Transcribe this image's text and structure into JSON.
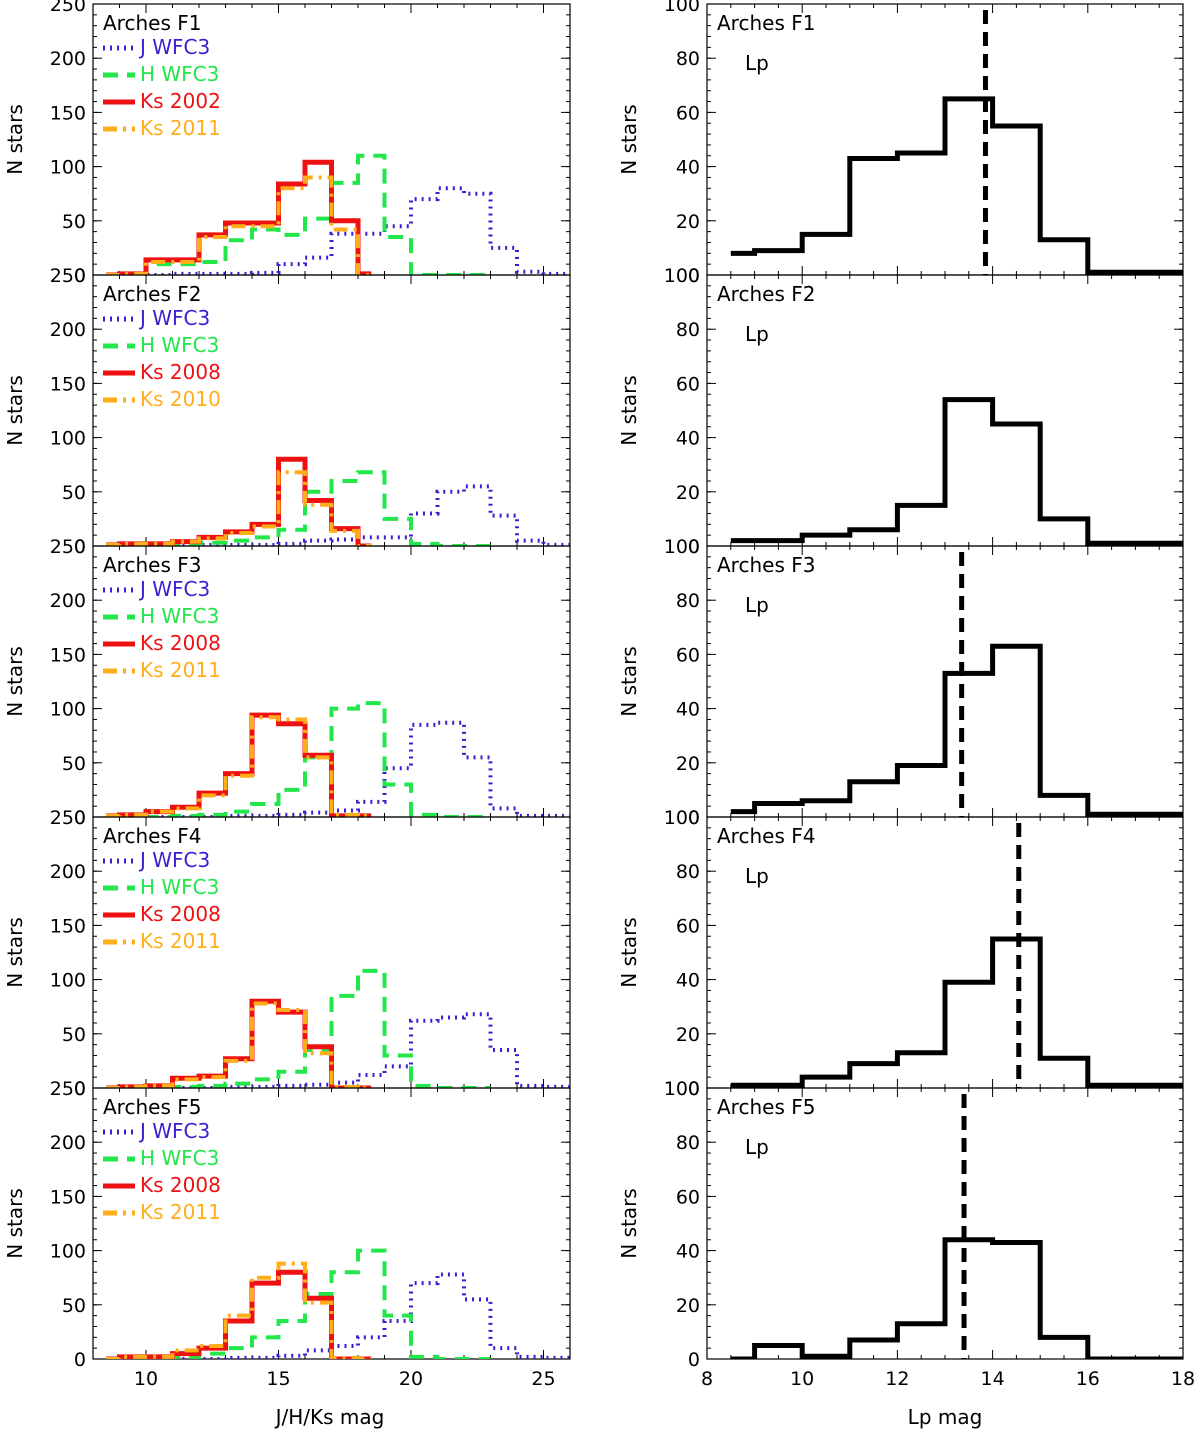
{
  "figure": {
    "left_xlabel": "J/H/Ks mag",
    "right_xlabel": "Lp mag",
    "ylabel": "N stars",
    "right_inset_label": "Lp"
  },
  "colors": {
    "J": "#3a1fd0",
    "H": "#22e64a",
    "Ks1": "#ee1111",
    "Ks2": "#ffae1a",
    "Lp": "#000000",
    "marker": "#000000"
  },
  "chart_data": [
    {
      "type": "histogram",
      "panel": "left",
      "field": "Arches F1",
      "title": "Arches F1",
      "xlim": [
        8,
        26
      ],
      "ylim": [
        0,
        250
      ],
      "xticks": [
        10,
        15,
        20,
        25
      ],
      "yticks": [
        0,
        50,
        100,
        150,
        200,
        250
      ],
      "xlabel": "",
      "ylabel": "N stars",
      "series": [
        {
          "key": "J",
          "name": "J WFC3",
          "style": "dotted",
          "edges": [
            9,
            10,
            11,
            12,
            13,
            14,
            15,
            16,
            17,
            18,
            19,
            20,
            21,
            22,
            23,
            24,
            25,
            26
          ],
          "values": [
            0,
            0,
            1,
            1,
            1,
            2,
            10,
            16,
            38,
            38,
            45,
            70,
            80,
            75,
            25,
            3,
            1
          ]
        },
        {
          "key": "H",
          "name": "H WFC3",
          "style": "dashed",
          "edges": [
            9,
            10,
            11,
            12,
            13,
            14,
            15,
            16,
            17,
            18,
            19,
            20,
            21,
            22,
            23
          ],
          "values": [
            0,
            10,
            10,
            12,
            32,
            42,
            37,
            52,
            85,
            110,
            35,
            0,
            0,
            0
          ]
        },
        {
          "key": "Ks1",
          "name": "Ks 2002",
          "style": "solid",
          "edges": [
            8.5,
            9,
            10,
            11,
            12,
            13,
            14,
            15,
            16,
            17,
            18,
            18.5
          ],
          "values": [
            0,
            1,
            14,
            14,
            37,
            48,
            48,
            84,
            104,
            50,
            1
          ]
        },
        {
          "key": "Ks2",
          "name": "Ks 2011",
          "style": "dashdot",
          "edges": [
            8.5,
            9,
            10,
            11,
            12,
            13,
            14,
            15,
            16,
            17,
            18,
            18.5
          ],
          "values": [
            0,
            1,
            12,
            12,
            35,
            45,
            45,
            80,
            90,
            42,
            0
          ]
        }
      ]
    },
    {
      "type": "histogram",
      "panel": "right",
      "field": "Arches F1",
      "title": "Arches F1",
      "inset": "Lp",
      "xlim": [
        8,
        18
      ],
      "ylim": [
        0,
        100
      ],
      "xticks": [
        8,
        10,
        12,
        14,
        16,
        18
      ],
      "yticks": [
        0,
        20,
        40,
        60,
        80,
        100
      ],
      "xlabel": "",
      "ylabel": "N stars",
      "marker_line": 13.85,
      "series": [
        {
          "key": "Lp",
          "name": "Lp",
          "style": "solid",
          "edges": [
            8.5,
            9,
            10,
            11,
            12,
            13,
            14,
            15,
            16,
            17,
            18
          ],
          "values": [
            8,
            9,
            15,
            43,
            45,
            65,
            55,
            13,
            1,
            1
          ]
        }
      ]
    },
    {
      "type": "histogram",
      "panel": "left",
      "field": "Arches F2",
      "title": "Arches F2",
      "xlim": [
        8,
        26
      ],
      "ylim": [
        0,
        250
      ],
      "xticks": [
        10,
        15,
        20,
        25
      ],
      "yticks": [
        0,
        50,
        100,
        150,
        200,
        250
      ],
      "xlabel": "",
      "ylabel": "N stars",
      "series": [
        {
          "key": "J",
          "name": "J WFC3",
          "style": "dotted",
          "edges": [
            9,
            10,
            11,
            12,
            13,
            14,
            15,
            16,
            17,
            18,
            19,
            20,
            21,
            22,
            23,
            24,
            25,
            26
          ],
          "values": [
            0,
            0,
            0,
            1,
            1,
            1,
            2,
            5,
            6,
            8,
            8,
            30,
            50,
            55,
            28,
            5,
            1
          ]
        },
        {
          "key": "H",
          "name": "H WFC3",
          "style": "dashed",
          "edges": [
            9,
            10,
            11,
            12,
            13,
            14,
            15,
            16,
            17,
            18,
            19,
            20,
            21,
            22,
            23
          ],
          "values": [
            0,
            1,
            2,
            3,
            5,
            8,
            15,
            50,
            60,
            68,
            25,
            2,
            0,
            0
          ]
        },
        {
          "key": "Ks1",
          "name": "Ks 2008",
          "style": "solid",
          "edges": [
            8.5,
            9,
            10,
            11,
            12,
            13,
            14,
            15,
            16,
            17,
            18,
            18.5
          ],
          "values": [
            1,
            2,
            2,
            4,
            8,
            13,
            20,
            80,
            42,
            16,
            0
          ]
        },
        {
          "key": "Ks2",
          "name": "Ks 2010",
          "style": "dashdot",
          "edges": [
            8.5,
            9,
            10,
            11,
            12,
            13,
            14,
            15,
            16,
            17,
            18,
            18.5
          ],
          "values": [
            1,
            2,
            2,
            4,
            7,
            12,
            18,
            68,
            38,
            14,
            0
          ]
        }
      ]
    },
    {
      "type": "histogram",
      "panel": "right",
      "field": "Arches F2",
      "title": "Arches F2",
      "inset": "Lp",
      "xlim": [
        8,
        18
      ],
      "ylim": [
        0,
        100
      ],
      "xticks": [
        8,
        10,
        12,
        14,
        16,
        18
      ],
      "yticks": [
        0,
        20,
        40,
        60,
        80,
        100
      ],
      "xlabel": "",
      "ylabel": "N stars",
      "series": [
        {
          "key": "Lp",
          "name": "Lp",
          "style": "solid",
          "edges": [
            8.5,
            9,
            10,
            11,
            12,
            13,
            14,
            15,
            16,
            17,
            18
          ],
          "values": [
            2,
            2,
            4,
            6,
            15,
            54,
            45,
            10,
            1,
            1
          ]
        }
      ]
    },
    {
      "type": "histogram",
      "panel": "left",
      "field": "Arches F3",
      "title": "Arches F3",
      "xlim": [
        8,
        26
      ],
      "ylim": [
        0,
        250
      ],
      "xticks": [
        10,
        15,
        20,
        25
      ],
      "yticks": [
        0,
        50,
        100,
        150,
        200,
        250
      ],
      "xlabel": "",
      "ylabel": "N stars",
      "series": [
        {
          "key": "J",
          "name": "J WFC3",
          "style": "dotted",
          "edges": [
            9,
            10,
            11,
            12,
            13,
            14,
            15,
            16,
            17,
            18,
            19,
            20,
            21,
            22,
            23,
            24,
            25,
            26
          ],
          "values": [
            0,
            0,
            0,
            0,
            1,
            1,
            2,
            4,
            6,
            14,
            45,
            85,
            87,
            55,
            8,
            1,
            1
          ]
        },
        {
          "key": "H",
          "name": "H WFC3",
          "style": "dashed",
          "edges": [
            9,
            10,
            11,
            12,
            13,
            14,
            15,
            16,
            17,
            18,
            19,
            20,
            21,
            22,
            23
          ],
          "values": [
            0,
            0,
            1,
            2,
            5,
            12,
            25,
            55,
            100,
            105,
            30,
            2,
            0,
            0
          ]
        },
        {
          "key": "Ks1",
          "name": "Ks 2008",
          "style": "solid",
          "edges": [
            8.5,
            9,
            10,
            11,
            12,
            13,
            14,
            15,
            16,
            17,
            18,
            18.5
          ],
          "values": [
            1,
            2,
            5,
            9,
            22,
            40,
            94,
            86,
            57,
            1,
            1
          ]
        },
        {
          "key": "Ks2",
          "name": "Ks 2011",
          "style": "dashdot",
          "edges": [
            8.5,
            9,
            10,
            11,
            12,
            13,
            14,
            15,
            16,
            17,
            18,
            18.5
          ],
          "values": [
            1,
            2,
            5,
            8,
            20,
            38,
            92,
            90,
            55,
            2,
            1
          ]
        }
      ]
    },
    {
      "type": "histogram",
      "panel": "right",
      "field": "Arches F3",
      "title": "Arches F3",
      "inset": "Lp",
      "xlim": [
        8,
        18
      ],
      "ylim": [
        0,
        100
      ],
      "xticks": [
        8,
        10,
        12,
        14,
        16,
        18
      ],
      "yticks": [
        0,
        20,
        40,
        60,
        80,
        100
      ],
      "xlabel": "",
      "ylabel": "N stars",
      "marker_line": 13.35,
      "series": [
        {
          "key": "Lp",
          "name": "Lp",
          "style": "solid",
          "edges": [
            8.5,
            9,
            10,
            11,
            12,
            13,
            14,
            15,
            16,
            17,
            18
          ],
          "values": [
            2,
            5,
            6,
            13,
            19,
            53,
            63,
            8,
            1,
            1
          ]
        }
      ]
    },
    {
      "type": "histogram",
      "panel": "left",
      "field": "Arches F4",
      "title": "Arches F4",
      "xlim": [
        8,
        26
      ],
      "ylim": [
        0,
        250
      ],
      "xticks": [
        10,
        15,
        20,
        25
      ],
      "yticks": [
        0,
        50,
        100,
        150,
        200,
        250
      ],
      "xlabel": "",
      "ylabel": "N stars",
      "series": [
        {
          "key": "J",
          "name": "J WFC3",
          "style": "dotted",
          "edges": [
            9,
            10,
            11,
            12,
            13,
            14,
            15,
            16,
            17,
            18,
            19,
            20,
            21,
            22,
            23,
            24,
            25,
            26
          ],
          "values": [
            0,
            0,
            0,
            0,
            1,
            1,
            2,
            3,
            5,
            12,
            20,
            62,
            65,
            68,
            35,
            2,
            1
          ]
        },
        {
          "key": "H",
          "name": "H WFC3",
          "style": "dashed",
          "edges": [
            9,
            10,
            11,
            12,
            13,
            14,
            15,
            16,
            17,
            18,
            19,
            20,
            21,
            22,
            23
          ],
          "values": [
            0,
            0,
            1,
            2,
            4,
            8,
            15,
            35,
            85,
            108,
            30,
            2,
            0,
            0
          ]
        },
        {
          "key": "Ks1",
          "name": "Ks 2008",
          "style": "solid",
          "edges": [
            8.5,
            9,
            10,
            11,
            12,
            13,
            14,
            15,
            16,
            17,
            18,
            18.5
          ],
          "values": [
            0,
            1,
            2,
            9,
            11,
            27,
            80,
            70,
            38,
            0,
            0
          ]
        },
        {
          "key": "Ks2",
          "name": "Ks 2011",
          "style": "dashdot",
          "edges": [
            8.5,
            9,
            10,
            11,
            12,
            13,
            14,
            15,
            16,
            17,
            18,
            18.5
          ],
          "values": [
            0,
            1,
            2,
            8,
            10,
            25,
            78,
            72,
            32,
            1,
            0
          ]
        }
      ]
    },
    {
      "type": "histogram",
      "panel": "right",
      "field": "Arches F4",
      "title": "Arches F4",
      "inset": "Lp",
      "xlim": [
        8,
        18
      ],
      "ylim": [
        0,
        100
      ],
      "xticks": [
        8,
        10,
        12,
        14,
        16,
        18
      ],
      "yticks": [
        0,
        20,
        40,
        60,
        80,
        100
      ],
      "xlabel": "",
      "ylabel": "N stars",
      "marker_line": 14.55,
      "series": [
        {
          "key": "Lp",
          "name": "Lp",
          "style": "solid",
          "edges": [
            8.5,
            9,
            10,
            11,
            12,
            13,
            14,
            15,
            16,
            17,
            18
          ],
          "values": [
            1,
            1,
            4,
            9,
            13,
            39,
            55,
            11,
            1,
            1
          ]
        }
      ]
    },
    {
      "type": "histogram",
      "panel": "left",
      "field": "Arches F5",
      "title": "Arches F5",
      "xlim": [
        8,
        26
      ],
      "ylim": [
        0,
        250
      ],
      "xticks": [
        10,
        15,
        20,
        25
      ],
      "yticks": [
        0,
        50,
        100,
        150,
        200,
        250
      ],
      "xlabel": "J/H/Ks mag",
      "ylabel": "N stars",
      "series": [
        {
          "key": "J",
          "name": "J WFC3",
          "style": "dotted",
          "edges": [
            9,
            10,
            11,
            12,
            13,
            14,
            15,
            16,
            17,
            18,
            19,
            20,
            21,
            22,
            23,
            24,
            25,
            26
          ],
          "values": [
            0,
            0,
            0,
            0,
            1,
            1,
            3,
            8,
            12,
            20,
            35,
            70,
            78,
            55,
            10,
            2,
            1
          ]
        },
        {
          "key": "H",
          "name": "H WFC3",
          "style": "dashed",
          "edges": [
            9,
            10,
            11,
            12,
            13,
            14,
            15,
            16,
            17,
            18,
            19,
            20,
            21,
            22,
            23
          ],
          "values": [
            0,
            1,
            2,
            5,
            10,
            20,
            35,
            60,
            80,
            100,
            40,
            2,
            0,
            0
          ]
        },
        {
          "key": "Ks1",
          "name": "Ks 2008",
          "style": "solid",
          "edges": [
            8.5,
            9,
            10,
            11,
            12,
            13,
            14,
            15,
            16,
            17,
            18,
            18.5
          ],
          "values": [
            0,
            2,
            2,
            5,
            10,
            35,
            70,
            80,
            56,
            0,
            0
          ]
        },
        {
          "key": "Ks2",
          "name": "Ks 2011",
          "style": "dashdot",
          "edges": [
            8.5,
            9,
            10,
            11,
            12,
            13,
            14,
            15,
            16,
            17,
            18,
            18.5
          ],
          "values": [
            0,
            2,
            2,
            8,
            12,
            40,
            75,
            88,
            52,
            1,
            0
          ]
        }
      ]
    },
    {
      "type": "histogram",
      "panel": "right",
      "field": "Arches F5",
      "title": "Arches F5",
      "inset": "Lp",
      "xlim": [
        8,
        18
      ],
      "ylim": [
        0,
        100
      ],
      "xticks": [
        8,
        10,
        12,
        14,
        16,
        18
      ],
      "yticks": [
        0,
        20,
        40,
        60,
        80,
        100
      ],
      "xlabel": "Lp mag",
      "ylabel": "N stars",
      "marker_line": 13.4,
      "series": [
        {
          "key": "Lp",
          "name": "Lp",
          "style": "solid",
          "edges": [
            8.5,
            9,
            10,
            11,
            12,
            13,
            14,
            15,
            16,
            17,
            18
          ],
          "values": [
            0,
            5,
            1,
            7,
            13,
            44,
            43,
            8,
            0,
            0
          ]
        }
      ]
    }
  ]
}
